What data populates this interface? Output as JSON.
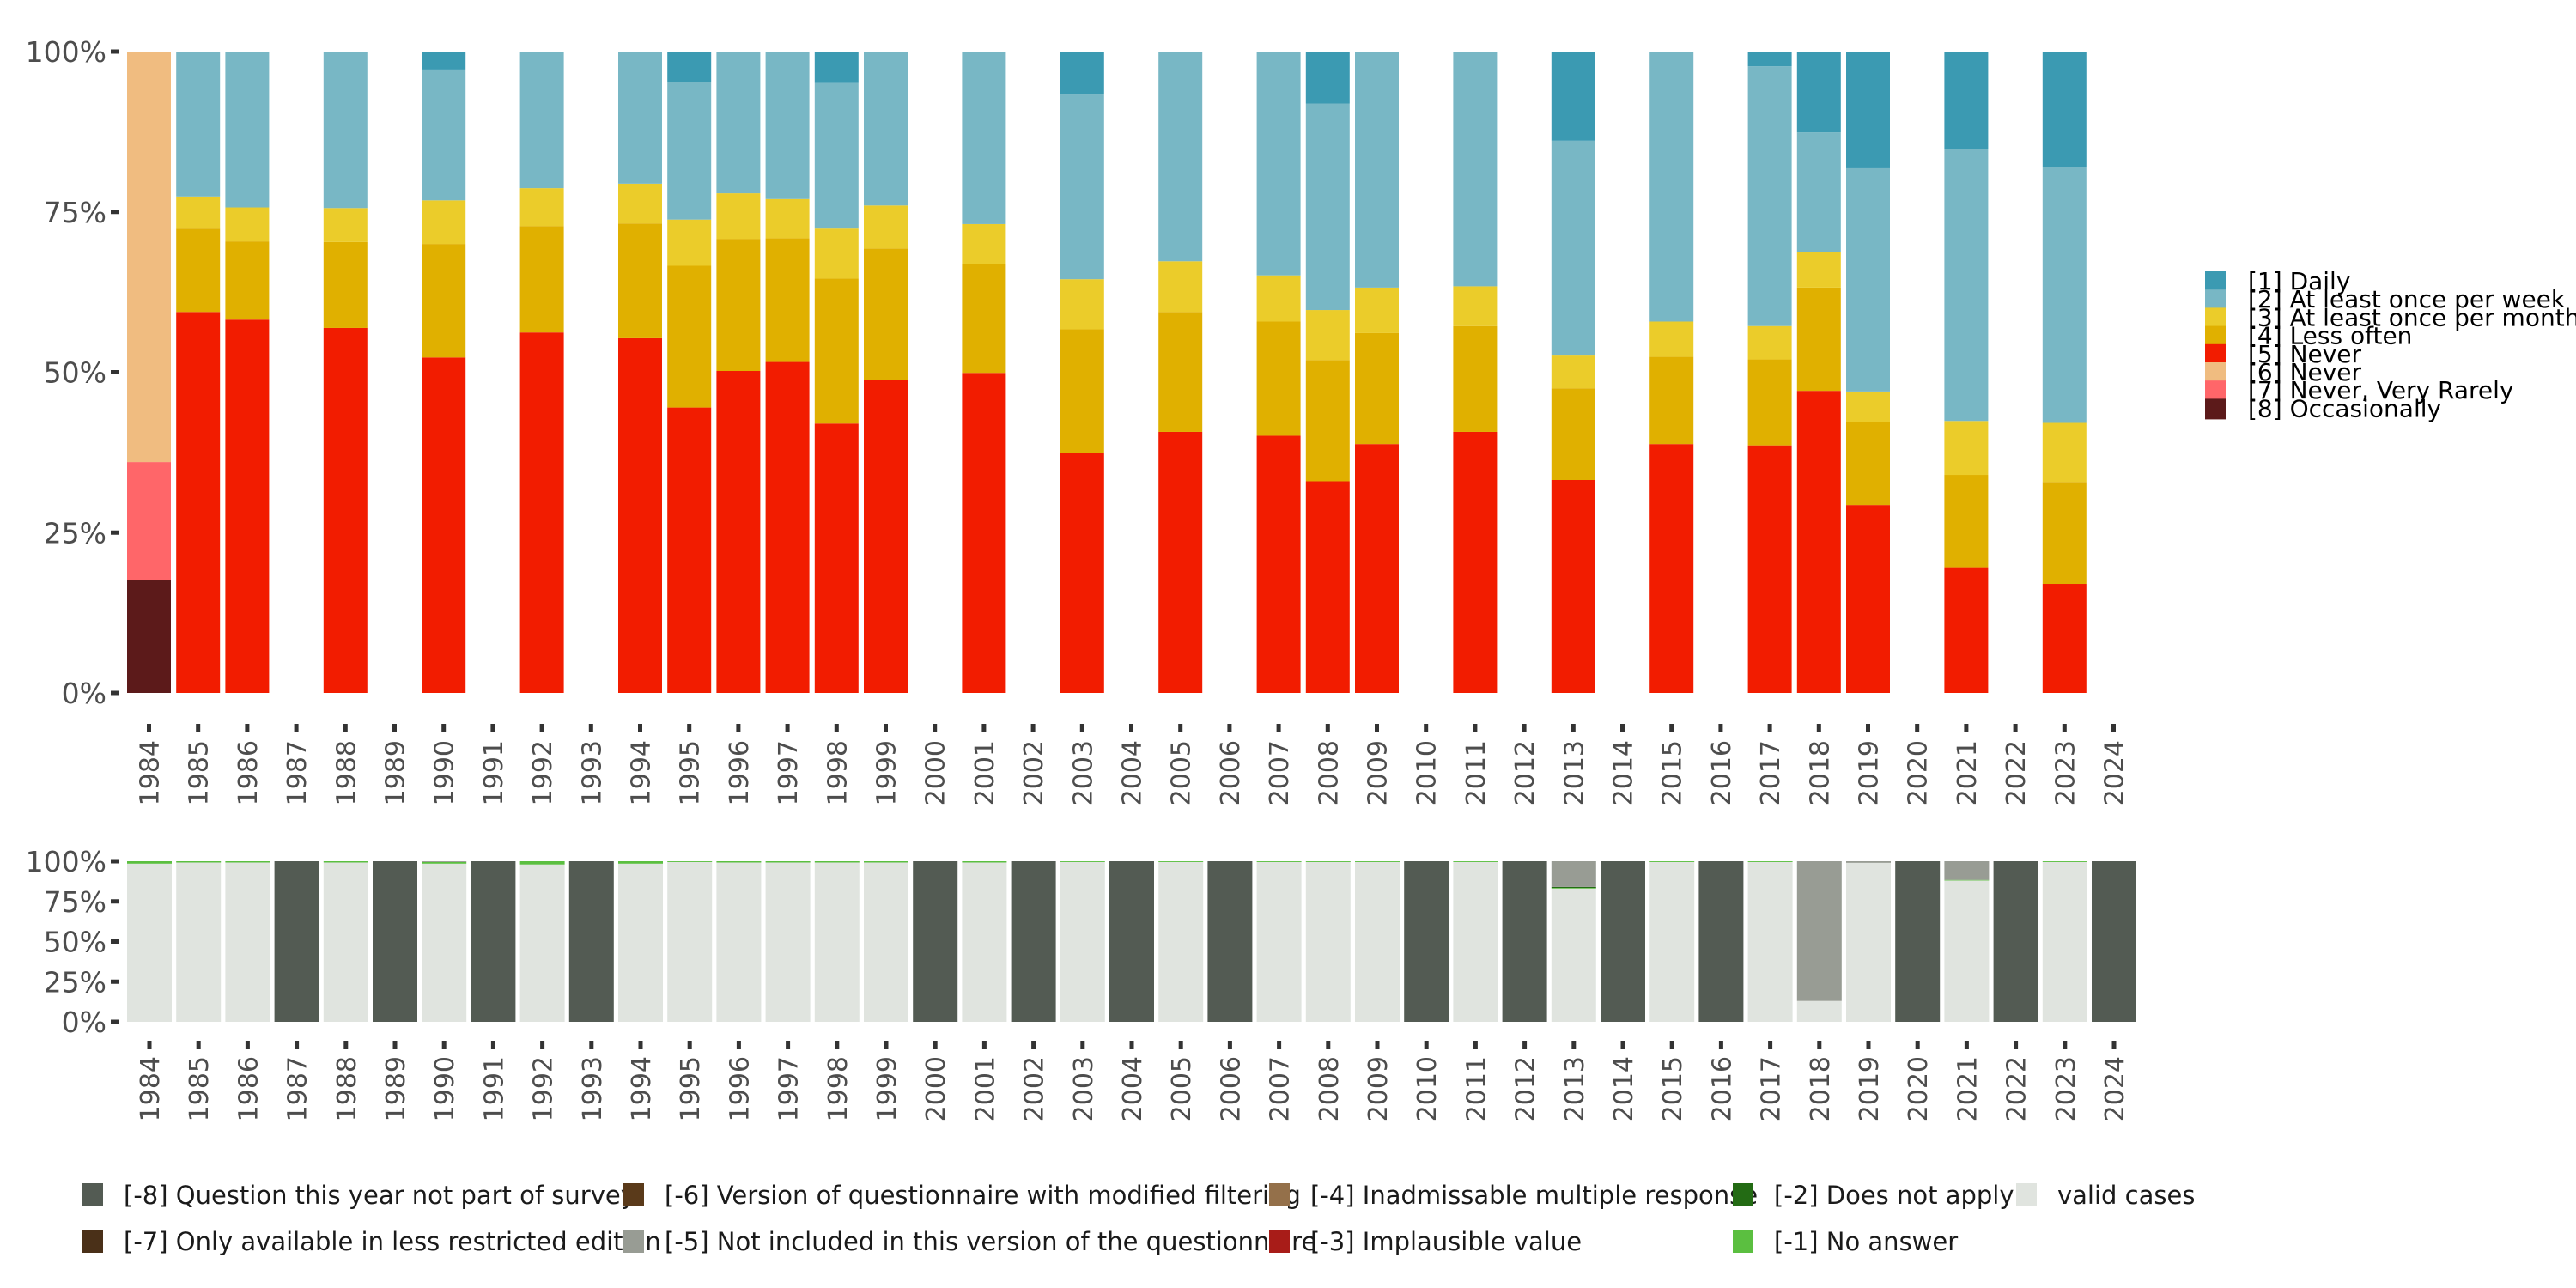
{
  "chart_data": [
    {
      "id": "distribution",
      "type": "bar",
      "stacked": true,
      "title": "",
      "xlabel": "",
      "ylabel": "",
      "ylim": [
        0,
        100
      ],
      "y_ticks": [
        "0%",
        "25%",
        "50%",
        "75%",
        "100%"
      ],
      "y_tick_values": [
        0,
        25,
        50,
        75,
        100
      ],
      "grid": false,
      "legend_position": "right",
      "categories": [
        "1984",
        "1985",
        "1986",
        "1987",
        "1988",
        "1989",
        "1990",
        "1991",
        "1992",
        "1993",
        "1994",
        "1995",
        "1996",
        "1997",
        "1998",
        "1999",
        "2000",
        "2001",
        "2002",
        "2003",
        "2004",
        "2005",
        "2006",
        "2007",
        "2008",
        "2009",
        "2010",
        "2011",
        "2012",
        "2013",
        "2014",
        "2015",
        "2016",
        "2017",
        "2018",
        "2019",
        "2020",
        "2021",
        "2022",
        "2023",
        "2024"
      ],
      "series": [
        {
          "name": "[8] Occasionally",
          "color": "#5c1a1a",
          "values": [
            17.6,
            0,
            0,
            0,
            0,
            0,
            0,
            0,
            0,
            0,
            0,
            0,
            0,
            0,
            0,
            0,
            0,
            0,
            0,
            0,
            0,
            0,
            0,
            0,
            0,
            0,
            0,
            0,
            0,
            0,
            0,
            0,
            0,
            0,
            0,
            0,
            0,
            0,
            0,
            0,
            0
          ]
        },
        {
          "name": "[7] Never, Very Rarely",
          "color": "#ff6669",
          "values": [
            18.4,
            0,
            0,
            0,
            0,
            0,
            0,
            0,
            0,
            0,
            0,
            0,
            0,
            0,
            0,
            0,
            0,
            0,
            0,
            0,
            0,
            0,
            0,
            0,
            0,
            0,
            0,
            0,
            0,
            0,
            0,
            0,
            0,
            0,
            0,
            0,
            0,
            0,
            0,
            0,
            0
          ]
        },
        {
          "name": "[6] Never",
          "color": "#f0bc80",
          "values": [
            64.0,
            0,
            0,
            0,
            0,
            0,
            0,
            0,
            0,
            0,
            0,
            0,
            0,
            0,
            0,
            0,
            0,
            0,
            0,
            0,
            0,
            0,
            0,
            0,
            0,
            0,
            0,
            0,
            0,
            0,
            0,
            0,
            0,
            0,
            0,
            0,
            0,
            0,
            0,
            0,
            0
          ]
        },
        {
          "name": "[5] Never",
          "color": "#f21c00",
          "values": [
            0,
            59.4,
            58.2,
            0,
            56.9,
            0,
            52.3,
            0,
            56.2,
            0,
            55.3,
            44.5,
            50.2,
            51.6,
            42.0,
            48.8,
            0,
            49.9,
            0,
            37.4,
            0,
            40.7,
            0,
            40.1,
            33.0,
            38.8,
            0,
            40.7,
            0,
            33.2,
            0,
            38.8,
            0,
            38.6,
            47.1,
            29.3,
            0,
            19.6,
            0,
            17.0,
            0
          ]
        },
        {
          "name": "[4] Less often",
          "color": "#e0b000",
          "values": [
            0,
            13.0,
            12.2,
            0,
            13.4,
            0,
            17.7,
            0,
            16.6,
            0,
            17.9,
            22.1,
            20.6,
            19.3,
            22.6,
            20.5,
            0,
            17.0,
            0,
            19.3,
            0,
            18.7,
            0,
            17.8,
            18.9,
            17.3,
            0,
            16.5,
            0,
            14.3,
            0,
            13.6,
            0,
            13.4,
            16.1,
            12.9,
            0,
            14.4,
            0,
            15.9,
            0
          ]
        },
        {
          "name": "[3] At least once per month",
          "color": "#ebcc2a",
          "values": [
            0,
            5.0,
            5.3,
            0,
            5.3,
            0,
            6.8,
            0,
            5.9,
            0,
            6.2,
            7.2,
            7.1,
            6.1,
            7.8,
            6.7,
            0,
            6.2,
            0,
            7.8,
            0,
            7.9,
            0,
            7.2,
            7.8,
            7.1,
            0,
            6.2,
            0,
            5.1,
            0,
            5.5,
            0,
            5.2,
            5.6,
            4.8,
            0,
            8.4,
            0,
            9.2,
            0
          ]
        },
        {
          "name": "[2] At least once per week",
          "color": "#78b7c5",
          "values": [
            0,
            22.6,
            24.3,
            0,
            24.4,
            0,
            20.4,
            0,
            21.3,
            0,
            20.6,
            21.5,
            22.1,
            23.0,
            22.7,
            24.0,
            0,
            26.9,
            0,
            28.8,
            0,
            32.7,
            0,
            34.9,
            32.2,
            36.8,
            0,
            36.6,
            0,
            33.5,
            0,
            42.1,
            0,
            40.5,
            18.6,
            34.8,
            0,
            42.4,
            0,
            39.9,
            0
          ]
        },
        {
          "name": "[1] Daily",
          "color": "#3b9ab2",
          "values": [
            0,
            0,
            0,
            0,
            0,
            0,
            2.8,
            0,
            0,
            0,
            0,
            4.7,
            0,
            0,
            4.9,
            0,
            0,
            0,
            0,
            6.7,
            0,
            0,
            0,
            0,
            8.1,
            0,
            0,
            0,
            0,
            13.9,
            0,
            0,
            0,
            2.3,
            12.6,
            18.2,
            0,
            15.2,
            0,
            18.0,
            0
          ]
        }
      ]
    },
    {
      "id": "missing-values",
      "type": "bar",
      "stacked": true,
      "title": "",
      "xlabel": "",
      "ylabel": "",
      "ylim": [
        0,
        100
      ],
      "y_ticks": [
        "0%",
        "25%",
        "50%",
        "75%",
        "100%"
      ],
      "y_tick_values": [
        0,
        25,
        50,
        75,
        100
      ],
      "grid": false,
      "legend_position": "bottom",
      "categories": [
        "1984",
        "1985",
        "1986",
        "1987",
        "1988",
        "1989",
        "1990",
        "1991",
        "1992",
        "1993",
        "1994",
        "1995",
        "1996",
        "1997",
        "1998",
        "1999",
        "2000",
        "2001",
        "2002",
        "2003",
        "2004",
        "2005",
        "2006",
        "2007",
        "2008",
        "2009",
        "2010",
        "2011",
        "2012",
        "2013",
        "2014",
        "2015",
        "2016",
        "2017",
        "2018",
        "2019",
        "2020",
        "2021",
        "2022",
        "2023",
        "2024"
      ],
      "series": [
        {
          "name": "valid cases",
          "color": "#e0e4df",
          "values": [
            98.5,
            99.2,
            99.2,
            0,
            99.2,
            0,
            98.5,
            0,
            98.0,
            0,
            98.5,
            99.5,
            99.2,
            99.2,
            99.2,
            99.2,
            0,
            99.2,
            0,
            99.5,
            0,
            99.5,
            0,
            99.5,
            99.5,
            99.5,
            0,
            99.5,
            0,
            83.0,
            0,
            99.5,
            0,
            99.5,
            13.0,
            99.0,
            0,
            88.0,
            0,
            99.5,
            0
          ]
        },
        {
          "name": "[-1] No answer",
          "color": "#5bbf40",
          "values": [
            1.5,
            0.8,
            0.8,
            0,
            0.8,
            0,
            1.0,
            0,
            2.0,
            0,
            1.5,
            0.5,
            0.8,
            0.8,
            0.8,
            0.8,
            0,
            0.8,
            0,
            0.5,
            0,
            0.5,
            0,
            0.5,
            0.5,
            0.5,
            0,
            0.5,
            0,
            0.4,
            0,
            0.5,
            0,
            0.5,
            0,
            0,
            0,
            0.4,
            0,
            0.5,
            0
          ]
        },
        {
          "name": "[-2] Does not apply",
          "color": "#236b14",
          "values": [
            0,
            0,
            0,
            0,
            0,
            0,
            0,
            0,
            0,
            0,
            0,
            0,
            0,
            0,
            0,
            0,
            0,
            0,
            0,
            0,
            0,
            0,
            0,
            0,
            0,
            0,
            0,
            0,
            0,
            0.6,
            0,
            0,
            0,
            0,
            0,
            0,
            0,
            0,
            0,
            0,
            0
          ]
        },
        {
          "name": "[-3] Implausible value",
          "color": "#a81c18",
          "values": [
            0,
            0,
            0,
            0,
            0,
            0,
            0,
            0,
            0,
            0,
            0,
            0,
            0,
            0,
            0,
            0,
            0,
            0,
            0,
            0,
            0,
            0,
            0,
            0,
            0,
            0,
            0,
            0,
            0,
            0,
            0,
            0,
            0,
            0,
            0,
            0,
            0,
            0,
            0,
            0,
            0
          ]
        },
        {
          "name": "[-4] Inadmissable multiple response",
          "color": "#94704a",
          "values": [
            0,
            0,
            0,
            0,
            0,
            0,
            0,
            0,
            0,
            0,
            0,
            0,
            0,
            0,
            0,
            0,
            0,
            0,
            0,
            0,
            0,
            0,
            0,
            0,
            0,
            0,
            0,
            0,
            0,
            0,
            0,
            0,
            0,
            0,
            0,
            0,
            0,
            0,
            0,
            0,
            0
          ]
        },
        {
          "name": "[-5] Not included in this version of the questionnaire",
          "color": "#989c94",
          "values": [
            0,
            0,
            0,
            0,
            0,
            0,
            0.5,
            0,
            0,
            0,
            0,
            0,
            0,
            0,
            0,
            0,
            0,
            0,
            0,
            0,
            0,
            0,
            0,
            0,
            0,
            0,
            0,
            0,
            0,
            16.0,
            0,
            0,
            0,
            0,
            87.0,
            1.0,
            0,
            11.6,
            0,
            0,
            0
          ]
        },
        {
          "name": "[-6] Version of questionnaire with modified filtering",
          "color": "#5a3a1a",
          "values": [
            0,
            0,
            0,
            0,
            0,
            0,
            0,
            0,
            0,
            0,
            0,
            0,
            0,
            0,
            0,
            0,
            0,
            0,
            0,
            0,
            0,
            0,
            0,
            0,
            0,
            0,
            0,
            0,
            0,
            0,
            0,
            0,
            0,
            0,
            0,
            0,
            0,
            0,
            0,
            0,
            0
          ]
        },
        {
          "name": "[-7] Only available in less restricted edition",
          "color": "#4a3018",
          "values": [
            0,
            0,
            0,
            0,
            0,
            0,
            0,
            0,
            0,
            0,
            0,
            0,
            0,
            0,
            0,
            0,
            0,
            0,
            0,
            0,
            0,
            0,
            0,
            0,
            0,
            0,
            0,
            0,
            0,
            0,
            0,
            0,
            0,
            0,
            0,
            0,
            0,
            0,
            0,
            0,
            0
          ]
        },
        {
          "name": "[-8] Question this year not part of survey",
          "color": "#535b53",
          "values": [
            0,
            0,
            0,
            100,
            0,
            100,
            0,
            100,
            0,
            100,
            0,
            0,
            0,
            0,
            0,
            0,
            100,
            0,
            100,
            0,
            100,
            0,
            100,
            0,
            0,
            0,
            100,
            0,
            100,
            0,
            100,
            0,
            100,
            0,
            0,
            0,
            100,
            0,
            100,
            0,
            100
          ]
        }
      ]
    }
  ],
  "legend_right": [
    {
      "label": "[1] Daily",
      "color": "#3b9ab2"
    },
    {
      "label": "[2] At least once per week",
      "color": "#78b7c5"
    },
    {
      "label": "[3] At least once per month",
      "color": "#ebcc2a"
    },
    {
      "label": "[4] Less often",
      "color": "#e0b000"
    },
    {
      "label": "[5] Never",
      "color": "#f21c00"
    },
    {
      "label": "[6] Never",
      "color": "#f0bc80"
    },
    {
      "label": "[7] Never, Very Rarely",
      "color": "#ff6669"
    },
    {
      "label": "[8] Occasionally",
      "color": "#5c1a1a"
    }
  ],
  "legend_bottom": [
    {
      "label": "[-8] Question this year not part of survey",
      "color": "#535b53"
    },
    {
      "label": "[-7] Only available in less restricted edition",
      "color": "#4a3018"
    },
    {
      "label": "[-6] Version of questionnaire with modified filtering",
      "color": "#5a3a1a"
    },
    {
      "label": "[-5] Not included in this version of the questionnaire",
      "color": "#989c94"
    },
    {
      "label": "[-4] Inadmissable multiple response",
      "color": "#94704a"
    },
    {
      "label": "[-3] Implausible value",
      "color": "#a81c18"
    },
    {
      "label": "[-2] Does not apply",
      "color": "#236b14"
    },
    {
      "label": "[-1] No answer",
      "color": "#5bbf40"
    },
    {
      "label": "valid cases",
      "color": "#e0e4df"
    }
  ]
}
